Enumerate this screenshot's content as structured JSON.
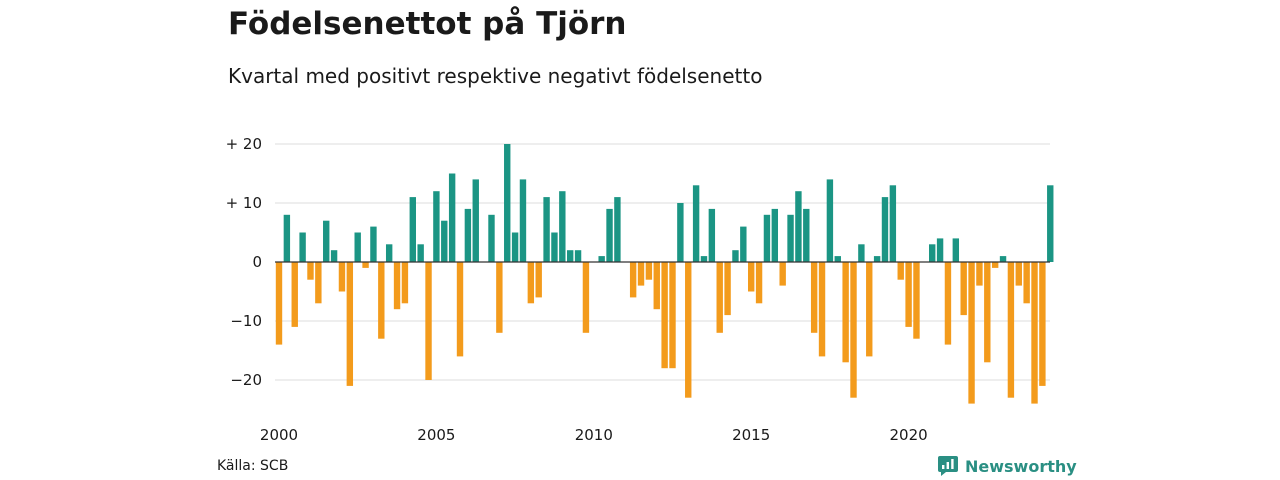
{
  "chart_data": {
    "type": "bar",
    "title": "Födelsenettot på Tjörn",
    "subtitle": "Kvartal med positivt respektive negativt födelsenetto",
    "source": "Källa: SCB",
    "brand": "Newsworthy",
    "x_unit": "quarter",
    "x_start": "2000 Q1",
    "x_ticks": [
      {
        "label": "2000",
        "year": 2000
      },
      {
        "label": "2005",
        "year": 2005
      },
      {
        "label": "2010",
        "year": 2010
      },
      {
        "label": "2015",
        "year": 2015
      },
      {
        "label": "2020",
        "year": 2020
      }
    ],
    "y_ticks": [
      {
        "label": "+ 20",
        "value": 20
      },
      {
        "label": "+ 10",
        "value": 10
      },
      {
        "label": "0",
        "value": 0
      },
      {
        "label": "−10",
        "value": -10
      },
      {
        "label": "−20",
        "value": -20
      }
    ],
    "ylim": [
      -24,
      21
    ],
    "grid": true,
    "colors": {
      "positive": "#1b9584",
      "negative": "#f39b1c",
      "grid": "#dddddd",
      "zero_line": "#333333",
      "brand": "#2a8f83"
    },
    "values": [
      -14,
      8,
      -11,
      5,
      -3,
      -7,
      7,
      2,
      -5,
      -21,
      5,
      -1,
      6,
      -13,
      3,
      -8,
      -7,
      11,
      3,
      -20,
      12,
      7,
      15,
      -16,
      9,
      14,
      0,
      8,
      -12,
      20,
      5,
      14,
      -7,
      -6,
      11,
      5,
      12,
      2,
      2,
      -12,
      0,
      1,
      9,
      11,
      0,
      -6,
      -4,
      -3,
      -8,
      -18,
      -18,
      10,
      -23,
      13,
      1,
      9,
      -12,
      -9,
      2,
      6,
      -5,
      -7,
      8,
      9,
      -4,
      8,
      12,
      9,
      -12,
      -16,
      14,
      1,
      -17,
      -23,
      3,
      -16,
      1,
      11,
      13,
      -3,
      -11,
      -13,
      0,
      3,
      4,
      -14,
      4,
      -9,
      -24,
      -4,
      -17,
      -1,
      1,
      -23,
      -4,
      -7,
      -24,
      -21,
      13
    ]
  }
}
